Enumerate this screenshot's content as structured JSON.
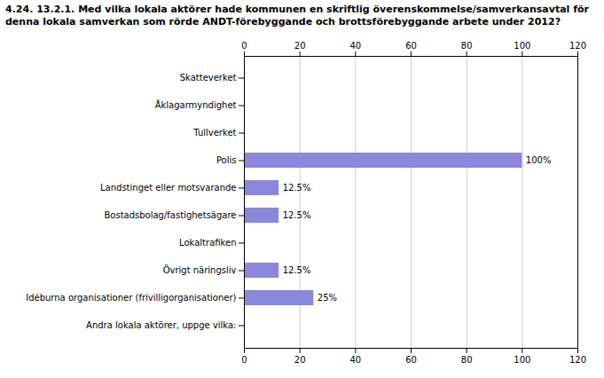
{
  "chart_data": {
    "type": "bar",
    "orientation": "horizontal",
    "title": "4.24. 13.2.1. Med vilka lokala aktörer hade kommunen en skriftlig överenskommelse/samverkansavtal för\ndenna lokala samverkan som rörde ANDT-förebyggande och brottsförebyggande arbete under 2012?",
    "categories": [
      "Skatteverket",
      "Åklagarmyndighet",
      "Tullverket",
      "Polis",
      "Landstinget eller motsvarande",
      "Bostadsbolag/fastighetsägare",
      "Lokaltrafiken",
      "Övrigt näringsliv",
      "Idéburna organisationer (frivilligorganisationer)",
      "Andra lokala aktörer, uppge vilka:"
    ],
    "values": [
      0,
      0,
      0,
      100,
      12.5,
      12.5,
      0,
      12.5,
      25,
      0
    ],
    "value_labels": [
      null,
      null,
      null,
      "100%",
      "12.5%",
      "12.5%",
      null,
      "12.5%",
      "25%",
      null
    ],
    "data_labels": true,
    "color": "#8888dd",
    "xlim": [
      0,
      120
    ],
    "xticks": [
      0,
      20,
      40,
      60,
      80,
      100,
      120
    ],
    "grid": true
  }
}
